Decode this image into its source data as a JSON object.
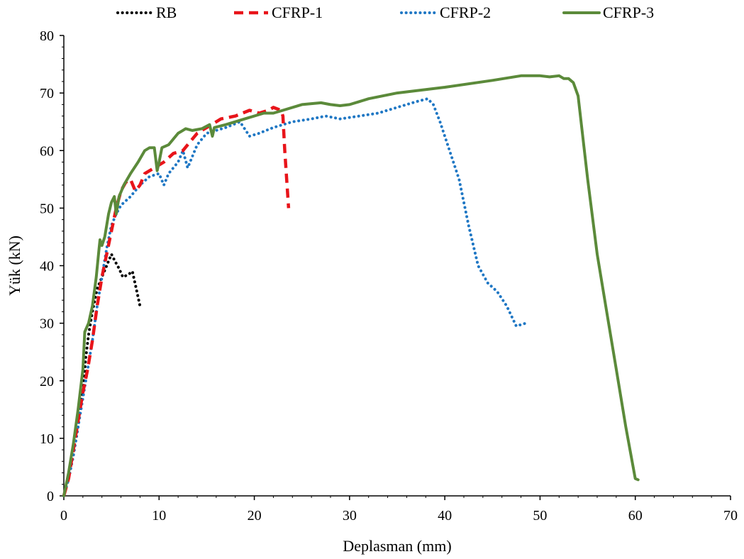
{
  "chart_data": {
    "type": "line",
    "title": "",
    "xlabel": "Deplasman (mm)",
    "ylabel": "Yük (kN)",
    "xlim": [
      0,
      70
    ],
    "ylim": [
      0,
      80
    ],
    "x_ticks": [
      "0",
      "10",
      "20",
      "30",
      "40",
      "50",
      "60",
      "70"
    ],
    "y_ticks": [
      "0",
      "10",
      "20",
      "30",
      "40",
      "50",
      "60",
      "70",
      "80"
    ],
    "grid": false,
    "legend_position": "top",
    "series": [
      {
        "name": "RB",
        "color": "#000000",
        "style": "dotted",
        "points": [
          [
            0,
            0
          ],
          [
            0.5,
            3
          ],
          [
            1,
            7
          ],
          [
            1.5,
            12
          ],
          [
            2,
            18
          ],
          [
            2.3,
            24
          ],
          [
            2.6,
            28
          ],
          [
            3,
            32
          ],
          [
            3.5,
            36
          ],
          [
            4,
            38
          ],
          [
            4.5,
            40
          ],
          [
            5,
            42
          ],
          [
            5.3,
            41
          ],
          [
            5.8,
            39.5
          ],
          [
            6.2,
            38
          ],
          [
            6.8,
            38.5
          ],
          [
            7.2,
            39
          ],
          [
            7.6,
            36
          ],
          [
            8,
            33
          ]
        ]
      },
      {
        "name": "CFRP-1",
        "color": "#e8141a",
        "style": "dashed",
        "points": [
          [
            0,
            0
          ],
          [
            0.5,
            3
          ],
          [
            1,
            8
          ],
          [
            1.5,
            13
          ],
          [
            2,
            18
          ],
          [
            2.5,
            22
          ],
          [
            3,
            27
          ],
          [
            3.5,
            33
          ],
          [
            4,
            38
          ],
          [
            4.5,
            42
          ],
          [
            5,
            46
          ],
          [
            5.5,
            50
          ],
          [
            6,
            53
          ],
          [
            6.5,
            54.5
          ],
          [
            7,
            55
          ],
          [
            7.5,
            53
          ],
          [
            8,
            54
          ],
          [
            8.5,
            56
          ],
          [
            9.5,
            57
          ],
          [
            10.5,
            58
          ],
          [
            11.5,
            59.5
          ],
          [
            12.5,
            60
          ],
          [
            13,
            61
          ],
          [
            14,
            63
          ],
          [
            15,
            64
          ],
          [
            16.5,
            65.5
          ],
          [
            18,
            66
          ],
          [
            19.5,
            67
          ],
          [
            20.5,
            66.5
          ],
          [
            21.5,
            67
          ],
          [
            22,
            67.5
          ],
          [
            22.8,
            67
          ],
          [
            23,
            66
          ],
          [
            23.2,
            60
          ],
          [
            23.4,
            55
          ],
          [
            23.6,
            50
          ]
        ]
      },
      {
        "name": "CFRP-2",
        "color": "#1f77c4",
        "style": "dotted",
        "points": [
          [
            0,
            0
          ],
          [
            0.5,
            3
          ],
          [
            1,
            7
          ],
          [
            1.5,
            12
          ],
          [
            2,
            17
          ],
          [
            2.5,
            22
          ],
          [
            3,
            27
          ],
          [
            3.5,
            33
          ],
          [
            4,
            38
          ],
          [
            4.5,
            43
          ],
          [
            5,
            47
          ],
          [
            5.5,
            49
          ],
          [
            6,
            50.5
          ],
          [
            7,
            52
          ],
          [
            8,
            54
          ],
          [
            9,
            55.5
          ],
          [
            10,
            56
          ],
          [
            10.5,
            54
          ],
          [
            11,
            56
          ],
          [
            12,
            58
          ],
          [
            12.5,
            60
          ],
          [
            13,
            57
          ],
          [
            14,
            61
          ],
          [
            15,
            63
          ],
          [
            17,
            64
          ],
          [
            18.5,
            65
          ],
          [
            19.5,
            62.5
          ],
          [
            20.5,
            63
          ],
          [
            22,
            64
          ],
          [
            24,
            65
          ],
          [
            26,
            65.5
          ],
          [
            27.5,
            66
          ],
          [
            29,
            65.5
          ],
          [
            31,
            66
          ],
          [
            33,
            66.5
          ],
          [
            35,
            67.5
          ],
          [
            37,
            68.5
          ],
          [
            38.2,
            69
          ],
          [
            38.8,
            68
          ],
          [
            39.5,
            65
          ],
          [
            40.5,
            60
          ],
          [
            41.5,
            55
          ],
          [
            42.5,
            47
          ],
          [
            43.5,
            40
          ],
          [
            44.5,
            37
          ],
          [
            45.5,
            35.5
          ],
          [
            46.5,
            33
          ],
          [
            47.5,
            29.5
          ],
          [
            48.5,
            30
          ]
        ]
      },
      {
        "name": "CFRP-3",
        "color": "#5b8a3a",
        "style": "solid",
        "points": [
          [
            0,
            0
          ],
          [
            0.5,
            4
          ],
          [
            1,
            9
          ],
          [
            1.5,
            15
          ],
          [
            2,
            22
          ],
          [
            2.2,
            28.5
          ],
          [
            2.6,
            30
          ],
          [
            3,
            33
          ],
          [
            3.4,
            38
          ],
          [
            3.7,
            43
          ],
          [
            3.8,
            44.5
          ],
          [
            4,
            43.5
          ],
          [
            4.3,
            45
          ],
          [
            4.7,
            49
          ],
          [
            5,
            51
          ],
          [
            5.3,
            52
          ],
          [
            5.5,
            49
          ],
          [
            5.8,
            52
          ],
          [
            6.3,
            54
          ],
          [
            7,
            56
          ],
          [
            7.8,
            58
          ],
          [
            8.5,
            60
          ],
          [
            9,
            60.5
          ],
          [
            9.5,
            60.5
          ],
          [
            9.8,
            56.5
          ],
          [
            10,
            58
          ],
          [
            10.3,
            60.5
          ],
          [
            11,
            61
          ],
          [
            12,
            63
          ],
          [
            12.8,
            63.8
          ],
          [
            13.5,
            63.5
          ],
          [
            14.5,
            63.8
          ],
          [
            15.3,
            64.5
          ],
          [
            15.6,
            62.5
          ],
          [
            15.8,
            64
          ],
          [
            17,
            64.5
          ],
          [
            19,
            65.5
          ],
          [
            21,
            66.5
          ],
          [
            22,
            66.5
          ],
          [
            23,
            67
          ],
          [
            25,
            68
          ],
          [
            27,
            68.3
          ],
          [
            28,
            68
          ],
          [
            29,
            67.8
          ],
          [
            30,
            68
          ],
          [
            32,
            69
          ],
          [
            35,
            70
          ],
          [
            40,
            71
          ],
          [
            45,
            72.2
          ],
          [
            48,
            73
          ],
          [
            50,
            73
          ],
          [
            51,
            72.8
          ],
          [
            52,
            73
          ],
          [
            52.5,
            72.5
          ],
          [
            53,
            72.5
          ],
          [
            53.5,
            71.8
          ],
          [
            54,
            69.5
          ],
          [
            55,
            55
          ],
          [
            56,
            42
          ],
          [
            57,
            32
          ],
          [
            58,
            22
          ],
          [
            59,
            12
          ],
          [
            60,
            3
          ],
          [
            60.3,
            2.8
          ]
        ]
      }
    ]
  }
}
